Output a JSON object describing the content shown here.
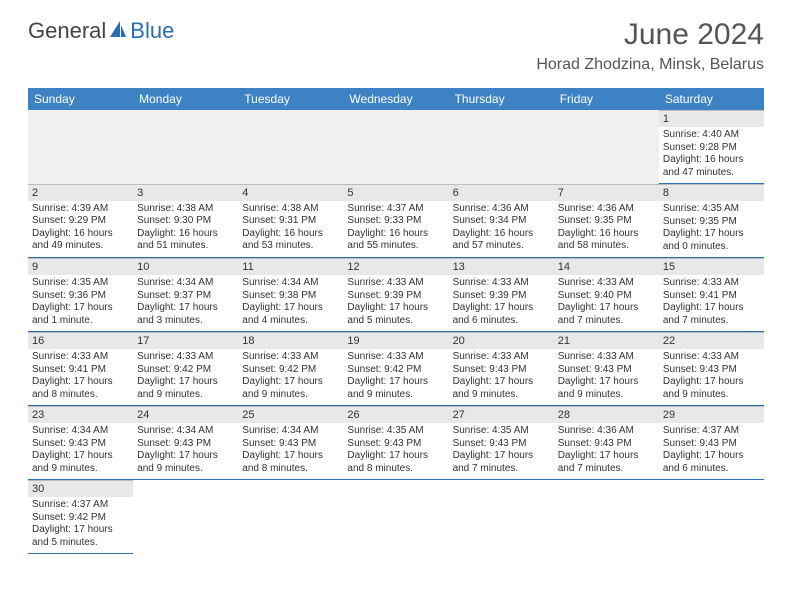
{
  "logo": {
    "text1": "General",
    "text2": "Blue"
  },
  "title": "June 2024",
  "location": "Horad Zhodzina, Minsk, Belarus",
  "weekdays": [
    "Sunday",
    "Monday",
    "Tuesday",
    "Wednesday",
    "Thursday",
    "Friday",
    "Saturday"
  ],
  "colors": {
    "header_bg": "#3d83c4",
    "header_text": "#ffffff",
    "daynum_bg": "#e8e8e8",
    "cell_border": "#2a6db0",
    "empty_bg": "#f0f0f0",
    "logo_accent": "#2a6db0",
    "body_text": "#333333"
  },
  "grid": [
    [
      null,
      null,
      null,
      null,
      null,
      null,
      {
        "n": "1",
        "sunrise": "Sunrise: 4:40 AM",
        "sunset": "Sunset: 9:28 PM",
        "daylight": "Daylight: 16 hours and 47 minutes."
      }
    ],
    [
      {
        "n": "2",
        "sunrise": "Sunrise: 4:39 AM",
        "sunset": "Sunset: 9:29 PM",
        "daylight": "Daylight: 16 hours and 49 minutes."
      },
      {
        "n": "3",
        "sunrise": "Sunrise: 4:38 AM",
        "sunset": "Sunset: 9:30 PM",
        "daylight": "Daylight: 16 hours and 51 minutes."
      },
      {
        "n": "4",
        "sunrise": "Sunrise: 4:38 AM",
        "sunset": "Sunset: 9:31 PM",
        "daylight": "Daylight: 16 hours and 53 minutes."
      },
      {
        "n": "5",
        "sunrise": "Sunrise: 4:37 AM",
        "sunset": "Sunset: 9:33 PM",
        "daylight": "Daylight: 16 hours and 55 minutes."
      },
      {
        "n": "6",
        "sunrise": "Sunrise: 4:36 AM",
        "sunset": "Sunset: 9:34 PM",
        "daylight": "Daylight: 16 hours and 57 minutes."
      },
      {
        "n": "7",
        "sunrise": "Sunrise: 4:36 AM",
        "sunset": "Sunset: 9:35 PM",
        "daylight": "Daylight: 16 hours and 58 minutes."
      },
      {
        "n": "8",
        "sunrise": "Sunrise: 4:35 AM",
        "sunset": "Sunset: 9:35 PM",
        "daylight": "Daylight: 17 hours and 0 minutes."
      }
    ],
    [
      {
        "n": "9",
        "sunrise": "Sunrise: 4:35 AM",
        "sunset": "Sunset: 9:36 PM",
        "daylight": "Daylight: 17 hours and 1 minute."
      },
      {
        "n": "10",
        "sunrise": "Sunrise: 4:34 AM",
        "sunset": "Sunset: 9:37 PM",
        "daylight": "Daylight: 17 hours and 3 minutes."
      },
      {
        "n": "11",
        "sunrise": "Sunrise: 4:34 AM",
        "sunset": "Sunset: 9:38 PM",
        "daylight": "Daylight: 17 hours and 4 minutes."
      },
      {
        "n": "12",
        "sunrise": "Sunrise: 4:33 AM",
        "sunset": "Sunset: 9:39 PM",
        "daylight": "Daylight: 17 hours and 5 minutes."
      },
      {
        "n": "13",
        "sunrise": "Sunrise: 4:33 AM",
        "sunset": "Sunset: 9:39 PM",
        "daylight": "Daylight: 17 hours and 6 minutes."
      },
      {
        "n": "14",
        "sunrise": "Sunrise: 4:33 AM",
        "sunset": "Sunset: 9:40 PM",
        "daylight": "Daylight: 17 hours and 7 minutes."
      },
      {
        "n": "15",
        "sunrise": "Sunrise: 4:33 AM",
        "sunset": "Sunset: 9:41 PM",
        "daylight": "Daylight: 17 hours and 7 minutes."
      }
    ],
    [
      {
        "n": "16",
        "sunrise": "Sunrise: 4:33 AM",
        "sunset": "Sunset: 9:41 PM",
        "daylight": "Daylight: 17 hours and 8 minutes."
      },
      {
        "n": "17",
        "sunrise": "Sunrise: 4:33 AM",
        "sunset": "Sunset: 9:42 PM",
        "daylight": "Daylight: 17 hours and 9 minutes."
      },
      {
        "n": "18",
        "sunrise": "Sunrise: 4:33 AM",
        "sunset": "Sunset: 9:42 PM",
        "daylight": "Daylight: 17 hours and 9 minutes."
      },
      {
        "n": "19",
        "sunrise": "Sunrise: 4:33 AM",
        "sunset": "Sunset: 9:42 PM",
        "daylight": "Daylight: 17 hours and 9 minutes."
      },
      {
        "n": "20",
        "sunrise": "Sunrise: 4:33 AM",
        "sunset": "Sunset: 9:43 PM",
        "daylight": "Daylight: 17 hours and 9 minutes."
      },
      {
        "n": "21",
        "sunrise": "Sunrise: 4:33 AM",
        "sunset": "Sunset: 9:43 PM",
        "daylight": "Daylight: 17 hours and 9 minutes."
      },
      {
        "n": "22",
        "sunrise": "Sunrise: 4:33 AM",
        "sunset": "Sunset: 9:43 PM",
        "daylight": "Daylight: 17 hours and 9 minutes."
      }
    ],
    [
      {
        "n": "23",
        "sunrise": "Sunrise: 4:34 AM",
        "sunset": "Sunset: 9:43 PM",
        "daylight": "Daylight: 17 hours and 9 minutes."
      },
      {
        "n": "24",
        "sunrise": "Sunrise: 4:34 AM",
        "sunset": "Sunset: 9:43 PM",
        "daylight": "Daylight: 17 hours and 9 minutes."
      },
      {
        "n": "25",
        "sunrise": "Sunrise: 4:34 AM",
        "sunset": "Sunset: 9:43 PM",
        "daylight": "Daylight: 17 hours and 8 minutes."
      },
      {
        "n": "26",
        "sunrise": "Sunrise: 4:35 AM",
        "sunset": "Sunset: 9:43 PM",
        "daylight": "Daylight: 17 hours and 8 minutes."
      },
      {
        "n": "27",
        "sunrise": "Sunrise: 4:35 AM",
        "sunset": "Sunset: 9:43 PM",
        "daylight": "Daylight: 17 hours and 7 minutes."
      },
      {
        "n": "28",
        "sunrise": "Sunrise: 4:36 AM",
        "sunset": "Sunset: 9:43 PM",
        "daylight": "Daylight: 17 hours and 7 minutes."
      },
      {
        "n": "29",
        "sunrise": "Sunrise: 4:37 AM",
        "sunset": "Sunset: 9:43 PM",
        "daylight": "Daylight: 17 hours and 6 minutes."
      }
    ],
    [
      {
        "n": "30",
        "sunrise": "Sunrise: 4:37 AM",
        "sunset": "Sunset: 9:42 PM",
        "daylight": "Daylight: 17 hours and 5 minutes."
      },
      null,
      null,
      null,
      null,
      null,
      null
    ]
  ]
}
